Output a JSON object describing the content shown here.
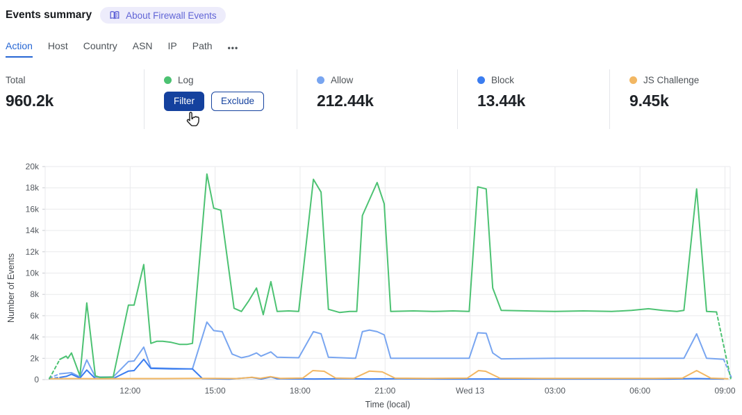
{
  "header": {
    "title": "Events summary",
    "about_label": "About Firewall Events"
  },
  "tabs": {
    "items": [
      {
        "label": "Action",
        "active": true
      },
      {
        "label": "Host",
        "active": false
      },
      {
        "label": "Country",
        "active": false
      },
      {
        "label": "ASN",
        "active": false
      },
      {
        "label": "IP",
        "active": false
      },
      {
        "label": "Path",
        "active": false
      }
    ],
    "more_label": "•••"
  },
  "stats": {
    "total": {
      "label": "Total",
      "value": "960.2k"
    },
    "log": {
      "label": "Log",
      "color": "#4cc272",
      "filter_label": "Filter",
      "exclude_label": "Exclude"
    },
    "allow": {
      "label": "Allow",
      "value": "212.44k",
      "color": "#78a5f0"
    },
    "block": {
      "label": "Block",
      "value": "13.44k",
      "color": "#3b7df0"
    },
    "js_challenge": {
      "label": "JS Challenge",
      "value": "9.45k",
      "color": "#f2b763"
    }
  },
  "chart_data": {
    "type": "line",
    "title": "",
    "xlabel": "Time (local)",
    "ylabel": "Number of Events",
    "y_unit": "k",
    "ylim": [
      0,
      20
    ],
    "x_domain_hours": [
      0,
      24.25
    ],
    "yticks": [
      {
        "v": 0,
        "label": "0"
      },
      {
        "v": 2,
        "label": "2k"
      },
      {
        "v": 4,
        "label": "4k"
      },
      {
        "v": 6,
        "label": "6k"
      },
      {
        "v": 8,
        "label": "8k"
      },
      {
        "v": 10,
        "label": "10k"
      },
      {
        "v": 12,
        "label": "12k"
      },
      {
        "v": 14,
        "label": "14k"
      },
      {
        "v": 16,
        "label": "16k"
      },
      {
        "v": 18,
        "label": "18k"
      },
      {
        "v": 20,
        "label": "20k"
      }
    ],
    "xticks": [
      {
        "t": 3,
        "label": "12:00"
      },
      {
        "t": 6,
        "label": "15:00"
      },
      {
        "t": 9,
        "label": "18:00"
      },
      {
        "t": 12,
        "label": "21:00"
      },
      {
        "t": 15,
        "label": "Wed 13"
      },
      {
        "t": 18,
        "label": "03:00"
      },
      {
        "t": 21,
        "label": "06:00"
      },
      {
        "t": 24,
        "label": "09:00"
      }
    ],
    "series": [
      {
        "name": "Log",
        "color": "#4cc272",
        "lead_dash": [
          [
            0.15,
            0.1
          ],
          [
            0.52,
            1.9
          ]
        ],
        "points": [
          [
            0.52,
            1.9
          ],
          [
            0.74,
            2.2
          ],
          [
            0.8,
            2.0
          ],
          [
            0.93,
            2.5
          ],
          [
            1.23,
            0.35
          ],
          [
            1.47,
            7.2
          ],
          [
            1.77,
            0.35
          ],
          [
            1.95,
            0.2
          ],
          [
            2.4,
            0.25
          ],
          [
            2.94,
            7.0
          ],
          [
            3.14,
            7.0
          ],
          [
            3.48,
            10.8
          ],
          [
            3.73,
            3.4
          ],
          [
            3.95,
            3.6
          ],
          [
            4.15,
            3.6
          ],
          [
            4.45,
            3.5
          ],
          [
            4.75,
            3.3
          ],
          [
            5.0,
            3.3
          ],
          [
            5.2,
            3.4
          ],
          [
            5.71,
            19.3
          ],
          [
            5.95,
            16.1
          ],
          [
            6.2,
            15.9
          ],
          [
            6.67,
            6.7
          ],
          [
            6.93,
            6.4
          ],
          [
            7.19,
            7.4
          ],
          [
            7.46,
            8.6
          ],
          [
            7.7,
            6.1
          ],
          [
            7.97,
            9.2
          ],
          [
            8.19,
            6.4
          ],
          [
            8.6,
            6.45
          ],
          [
            8.95,
            6.4
          ],
          [
            9.47,
            18.8
          ],
          [
            9.74,
            17.6
          ],
          [
            10.0,
            6.6
          ],
          [
            10.4,
            6.3
          ],
          [
            10.75,
            6.4
          ],
          [
            11.0,
            6.4
          ],
          [
            11.2,
            15.4
          ],
          [
            11.72,
            18.5
          ],
          [
            11.97,
            16.5
          ],
          [
            12.2,
            6.4
          ],
          [
            13.0,
            6.45
          ],
          [
            13.7,
            6.4
          ],
          [
            14.4,
            6.45
          ],
          [
            14.97,
            6.4
          ],
          [
            15.27,
            18.1
          ],
          [
            15.57,
            17.9
          ],
          [
            15.8,
            8.6
          ],
          [
            16.1,
            6.5
          ],
          [
            17.0,
            6.45
          ],
          [
            18.0,
            6.4
          ],
          [
            19.0,
            6.45
          ],
          [
            20.0,
            6.4
          ],
          [
            20.7,
            6.5
          ],
          [
            21.3,
            6.65
          ],
          [
            21.8,
            6.5
          ],
          [
            22.3,
            6.4
          ],
          [
            22.55,
            6.5
          ],
          [
            23.0,
            17.9
          ],
          [
            23.35,
            6.4
          ],
          [
            23.7,
            6.35
          ]
        ],
        "tail_dash": [
          [
            23.7,
            6.35
          ],
          [
            24.2,
            0.1
          ]
        ]
      },
      {
        "name": "Allow",
        "color": "#78a5f0",
        "lead_dash": [
          [
            0.15,
            0.15
          ],
          [
            0.52,
            0.55
          ]
        ],
        "points": [
          [
            0.52,
            0.55
          ],
          [
            0.74,
            0.6
          ],
          [
            0.93,
            0.65
          ],
          [
            1.23,
            0.25
          ],
          [
            1.47,
            1.85
          ],
          [
            1.77,
            0.25
          ],
          [
            2.4,
            0.25
          ],
          [
            2.94,
            1.7
          ],
          [
            3.14,
            1.75
          ],
          [
            3.48,
            3.05
          ],
          [
            3.73,
            1.1
          ],
          [
            4.5,
            1.05
          ],
          [
            5.2,
            1.0
          ],
          [
            5.71,
            5.4
          ],
          [
            5.95,
            4.6
          ],
          [
            6.25,
            4.5
          ],
          [
            6.6,
            2.4
          ],
          [
            6.93,
            2.05
          ],
          [
            7.19,
            2.2
          ],
          [
            7.46,
            2.5
          ],
          [
            7.62,
            2.2
          ],
          [
            7.97,
            2.6
          ],
          [
            8.19,
            2.1
          ],
          [
            8.95,
            2.05
          ],
          [
            9.47,
            4.5
          ],
          [
            9.74,
            4.3
          ],
          [
            10.0,
            2.1
          ],
          [
            10.96,
            2.0
          ],
          [
            11.2,
            4.5
          ],
          [
            11.45,
            4.65
          ],
          [
            11.72,
            4.5
          ],
          [
            11.97,
            4.2
          ],
          [
            12.2,
            2.0
          ],
          [
            13.5,
            2.0
          ],
          [
            14.97,
            2.0
          ],
          [
            15.27,
            4.4
          ],
          [
            15.57,
            4.35
          ],
          [
            15.8,
            2.5
          ],
          [
            16.1,
            1.95
          ],
          [
            18.0,
            2.0
          ],
          [
            20.5,
            2.0
          ],
          [
            22.55,
            2.0
          ],
          [
            23.0,
            4.3
          ],
          [
            23.35,
            2.0
          ],
          [
            23.95,
            1.9
          ]
        ],
        "tail_dash": [
          [
            23.95,
            1.9
          ],
          [
            24.25,
            0.05
          ]
        ]
      },
      {
        "name": "Block",
        "color": "#3b7df0",
        "lead_dash": [
          [
            0.15,
            0.08
          ],
          [
            0.52,
            0.2
          ]
        ],
        "points": [
          [
            0.52,
            0.2
          ],
          [
            0.74,
            0.3
          ],
          [
            0.93,
            0.5
          ],
          [
            1.23,
            0.15
          ],
          [
            1.47,
            0.9
          ],
          [
            1.77,
            0.1
          ],
          [
            2.4,
            0.1
          ],
          [
            2.94,
            0.8
          ],
          [
            3.14,
            0.85
          ],
          [
            3.48,
            1.9
          ],
          [
            3.73,
            1.05
          ],
          [
            4.5,
            1.0
          ],
          [
            5.2,
            1.0
          ],
          [
            5.55,
            0.1
          ],
          [
            6.5,
            0.05
          ],
          [
            7.3,
            0.2
          ],
          [
            7.62,
            0.05
          ],
          [
            7.97,
            0.25
          ],
          [
            8.19,
            0.08
          ],
          [
            9.5,
            0.06
          ],
          [
            10.5,
            0.08
          ],
          [
            11.5,
            0.06
          ],
          [
            12.5,
            0.08
          ],
          [
            14.0,
            0.06
          ],
          [
            16.0,
            0.06
          ],
          [
            18.0,
            0.06
          ],
          [
            20.0,
            0.06
          ],
          [
            22.0,
            0.06
          ],
          [
            23.0,
            0.1
          ],
          [
            23.95,
            0.06
          ]
        ]
      },
      {
        "name": "JS Challenge",
        "color": "#f2b763",
        "points": [
          [
            0.15,
            0.08
          ],
          [
            1.0,
            0.1
          ],
          [
            2.0,
            0.08
          ],
          [
            3.0,
            0.1
          ],
          [
            4.2,
            0.1
          ],
          [
            5.2,
            0.12
          ],
          [
            6.0,
            0.12
          ],
          [
            6.8,
            0.1
          ],
          [
            7.3,
            0.22
          ],
          [
            7.6,
            0.12
          ],
          [
            7.95,
            0.28
          ],
          [
            8.3,
            0.12
          ],
          [
            9.1,
            0.15
          ],
          [
            9.45,
            0.85
          ],
          [
            9.85,
            0.78
          ],
          [
            10.25,
            0.15
          ],
          [
            10.9,
            0.12
          ],
          [
            11.45,
            0.8
          ],
          [
            11.9,
            0.72
          ],
          [
            12.35,
            0.14
          ],
          [
            13.5,
            0.12
          ],
          [
            14.9,
            0.14
          ],
          [
            15.3,
            0.85
          ],
          [
            15.55,
            0.78
          ],
          [
            16.05,
            0.14
          ],
          [
            17.5,
            0.12
          ],
          [
            19.5,
            0.12
          ],
          [
            21.5,
            0.12
          ],
          [
            22.5,
            0.14
          ],
          [
            23.0,
            0.85
          ],
          [
            23.5,
            0.14
          ],
          [
            24.1,
            0.08
          ]
        ]
      }
    ],
    "legend_position": "top"
  }
}
